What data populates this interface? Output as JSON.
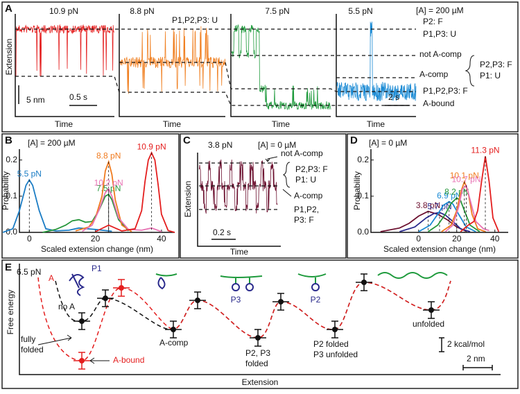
{
  "panel_a": {
    "label": "A",
    "concentration": "[A] = 200 µM",
    "y_label": "Extension",
    "scale_extension": "5 nm",
    "scale_time": [
      "0.5 s",
      "2 s"
    ],
    "inset_state": "P1,P2,P3: U",
    "traces": [
      {
        "force": "10.9 pN",
        "x_label": "Time",
        "color": "#e41e1e"
      },
      {
        "force": "8.8 pN",
        "x_label": "Time",
        "color": "#f08022"
      },
      {
        "force": "7.5 pN",
        "x_label": "Time",
        "color": "#1e9a3c"
      },
      {
        "force": "5.5 pN",
        "x_label": "Time",
        "color": "#1a8ad4"
      }
    ],
    "states": [
      "P2: F",
      "P1,P3: U",
      "not A-comp",
      "P2,P3: F",
      "A-comp",
      "P1: U",
      "P1,P2,P3: F",
      "A-bound"
    ]
  },
  "panel_b": {
    "label": "B",
    "concentration": "[A] = 200 µM",
    "chart_data": {
      "type": "line",
      "x_label": "Scaled extension change (nm)",
      "y_label": "Probability",
      "xlim": [
        -3,
        44
      ],
      "ylim": [
        0,
        0.23
      ],
      "xticks": [
        0,
        20,
        40
      ],
      "yticks": [
        {
          "value": 0,
          "label": "0.0"
        },
        0.1,
        0.2
      ],
      "series": [
        {
          "name": "5.5 pN",
          "color": "#1a7cc4",
          "x": [
            -8,
            -5,
            -3,
            -1,
            0,
            1,
            3,
            5,
            8,
            12,
            15,
            20,
            25
          ],
          "values": [
            0,
            0.01,
            0.06,
            0.13,
            0.145,
            0.13,
            0.06,
            0.01,
            0.004,
            0.006,
            0.012,
            0.008,
            0.003
          ]
        },
        {
          "name": "7.5 pN",
          "color": "#25963a",
          "x": [
            4,
            8,
            11,
            13,
            15,
            17,
            19,
            21,
            23,
            24,
            25,
            27,
            30
          ],
          "values": [
            0,
            0.008,
            0.02,
            0.032,
            0.035,
            0.028,
            0.03,
            0.06,
            0.1,
            0.105,
            0.09,
            0.035,
            0.004
          ]
        },
        {
          "name": "8.8 pN",
          "color": "#f07a1e",
          "x": [
            14,
            18,
            20,
            22,
            23,
            24,
            25,
            26,
            28,
            31
          ],
          "values": [
            0.004,
            0.015,
            0.04,
            0.1,
            0.17,
            0.195,
            0.16,
            0.09,
            0.02,
            0.002
          ]
        },
        {
          "name": "10.2 pN",
          "color": "#e873b4",
          "x": [
            16,
            19,
            21,
            23,
            24,
            25,
            27,
            30,
            34,
            37,
            40
          ],
          "values": [
            0.003,
            0.02,
            0.06,
            0.11,
            0.12,
            0.1,
            0.04,
            0.008,
            0.006,
            0.012,
            0.002
          ]
        },
        {
          "name": "10.9 pN",
          "color": "#e41e1e",
          "x": [
            20,
            24,
            28,
            32,
            34,
            35,
            36,
            37,
            38,
            39,
            40,
            42,
            44
          ],
          "values": [
            0.002,
            0.02,
            0.004,
            0.01,
            0.06,
            0.14,
            0.2,
            0.22,
            0.2,
            0.13,
            0.05,
            0.005,
            0
          ]
        }
      ]
    }
  },
  "panel_c": {
    "label": "C",
    "force": "3.8 pN",
    "concentration": "[A] = 0 µM",
    "y_label": "Extension",
    "x_label": "Time",
    "scale_time": "0.2 s",
    "color": "#6b0f2e",
    "states": [
      "not A-comp",
      "P2,P3: F",
      "P1: U",
      "A-comp",
      "P1,P2,",
      "P3: F"
    ]
  },
  "panel_d": {
    "label": "D",
    "concentration": "[A] = 0 µM",
    "chart_data": {
      "type": "line",
      "x_label": "Scaled extension change (nm)",
      "y_label": "Probability",
      "xlim": [
        -25,
        47
      ],
      "ylim": [
        0,
        0.23
      ],
      "xticks": [
        0,
        20,
        40
      ],
      "yticks": [
        {
          "value": 0,
          "label": "0.0"
        },
        0.1,
        0.2
      ],
      "series": [
        {
          "name": "3.8 pN",
          "color": "#6b0f2e",
          "x": [
            -20,
            -10,
            -5,
            0,
            5,
            10,
            15,
            20,
            25
          ],
          "values": [
            0.002,
            0.012,
            0.025,
            0.045,
            0.058,
            0.05,
            0.035,
            0.015,
            0.003
          ]
        },
        {
          "name": "5.7 pN",
          "color": "#2a2a8c",
          "x": [
            -10,
            -2,
            4,
            8,
            11,
            14,
            18,
            22,
            27
          ],
          "values": [
            0.002,
            0.015,
            0.04,
            0.052,
            0.055,
            0.048,
            0.03,
            0.01,
            0.002
          ]
        },
        {
          "name": "6.9 pN",
          "color": "#1a8ad4",
          "x": [
            0,
            6,
            10,
            13,
            16,
            18,
            21,
            25,
            30
          ],
          "values": [
            0.002,
            0.02,
            0.05,
            0.075,
            0.085,
            0.078,
            0.05,
            0.015,
            0.002
          ]
        },
        {
          "name": "8.2 pN",
          "color": "#25963a",
          "x": [
            5,
            10,
            14,
            17,
            20,
            22,
            24,
            27,
            32
          ],
          "values": [
            0.002,
            0.02,
            0.05,
            0.08,
            0.095,
            0.088,
            0.06,
            0.02,
            0.002
          ]
        },
        {
          "name": "10.1 pN",
          "color": "#f07a1e",
          "x": [
            12,
            17,
            20,
            22,
            24,
            26,
            28,
            31,
            35
          ],
          "values": [
            0.002,
            0.02,
            0.06,
            0.11,
            0.14,
            0.11,
            0.05,
            0.01,
            0.002
          ]
        },
        {
          "name": "10.7 pN",
          "color": "#e873b4",
          "x": [
            14,
            18,
            21,
            23,
            25,
            27,
            30,
            34,
            37
          ],
          "values": [
            0.002,
            0.02,
            0.07,
            0.12,
            0.13,
            0.09,
            0.03,
            0.01,
            0.005
          ]
        },
        {
          "name": "11.3 pN",
          "color": "#e41e1e",
          "x": [
            22,
            26,
            29,
            31,
            33,
            35,
            37,
            39,
            42
          ],
          "values": [
            0.002,
            0.02,
            0.03,
            0.06,
            0.14,
            0.21,
            0.14,
            0.04,
            0.002
          ]
        }
      ]
    }
  },
  "panel_e": {
    "label": "E",
    "force": "6.5 pN",
    "y_label": "Free energy",
    "x_label": "Extension",
    "ligand": "A",
    "helix": "P1",
    "annotations": [
      "no A",
      "fully",
      "folded",
      "A-bound",
      "A-comp",
      "P2, P3",
      "folded",
      "P3",
      "P2",
      "P2 folded",
      "P3 unfolded",
      "unfolded"
    ],
    "scale_energy": "2 kcal/mol",
    "scale_extension": "2 nm"
  }
}
